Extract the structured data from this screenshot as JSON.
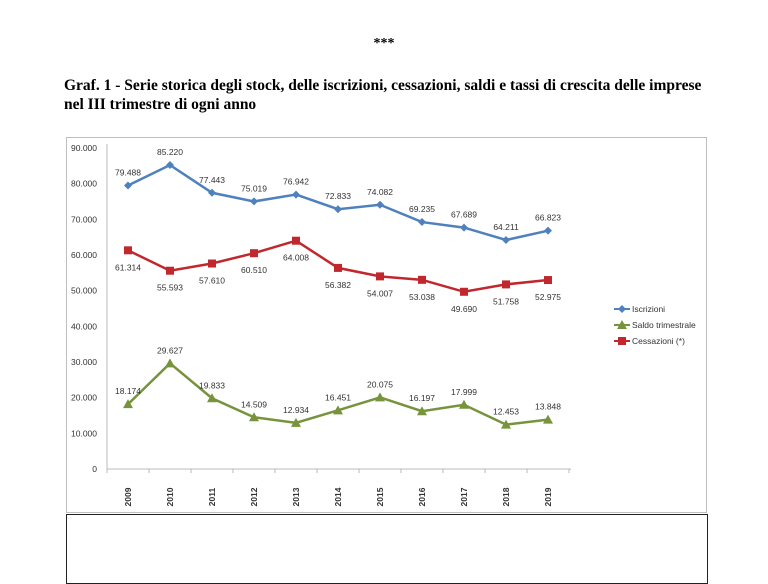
{
  "header": {
    "stars": "***",
    "title": "Graf. 1 - Serie storica degli stock, delle iscrizioni, cessazioni, saldi e tassi di crescita delle imprese nel III trimestre di ogni anno"
  },
  "chart_data": {
    "type": "line",
    "categories": [
      "2009",
      "2010",
      "2011",
      "2012",
      "2013",
      "2014",
      "2015",
      "2016",
      "2017",
      "2018",
      "2019"
    ],
    "ylim": [
      0,
      90000
    ],
    "yticks": [
      0,
      10000,
      20000,
      30000,
      40000,
      50000,
      60000,
      70000,
      80000,
      90000
    ],
    "ytick_labels": [
      "0",
      "10.000",
      "20.000",
      "30.000",
      "40.000",
      "50.000",
      "60.000",
      "70.000",
      "80.000",
      "90.000"
    ],
    "legend_position": "right",
    "grid": false,
    "series": [
      {
        "name": "Iscrizioni",
        "color": "#4f81bd",
        "marker": "diamond",
        "label_pos": "above",
        "values": [
          79488,
          85220,
          77443,
          75019,
          76942,
          72833,
          74082,
          69235,
          67689,
          64211,
          66823
        ],
        "labels": [
          "79.488",
          "85.220",
          "77.443",
          "75.019",
          "76.942",
          "72.833",
          "74.082",
          "69.235",
          "67.689",
          "64.211",
          "66.823"
        ]
      },
      {
        "name": "Saldo trimestrale",
        "color": "#77933c",
        "marker": "triangle",
        "label_pos": "above",
        "values": [
          18174,
          29627,
          19833,
          14509,
          12934,
          16451,
          20075,
          16197,
          17999,
          12453,
          13848
        ],
        "labels": [
          "18.174",
          "29.627",
          "19.833",
          "14.509",
          "12.934",
          "16.451",
          "20.075",
          "16.197",
          "17.999",
          "12.453",
          "13.848"
        ]
      },
      {
        "name": "Cessazioni (*)",
        "color": "#c0282d",
        "marker": "square",
        "label_pos": "below",
        "values": [
          61314,
          55593,
          57610,
          60510,
          64008,
          56382,
          54007,
          53038,
          49690,
          51758,
          52975
        ],
        "labels": [
          "61.314",
          "55.593",
          "57.610",
          "60.510",
          "64.008",
          "56.382",
          "54.007",
          "53.038",
          "49.690",
          "51.758",
          "52.975"
        ]
      }
    ]
  }
}
